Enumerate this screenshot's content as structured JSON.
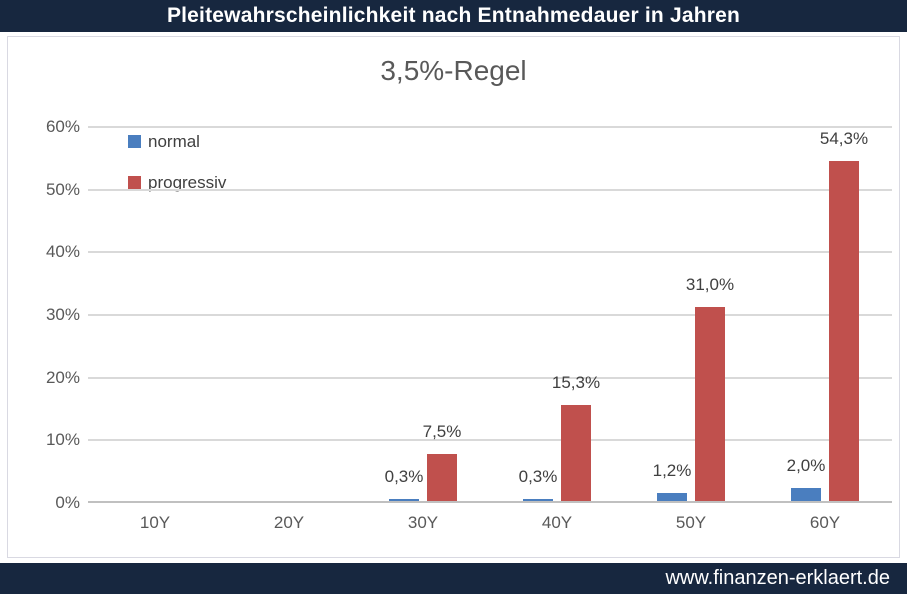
{
  "header": {
    "title": "Pleitewahrscheinlichkeit nach Entnahmedauer in Jahren"
  },
  "footer": {
    "url": "www.finanzen-erklaert.de"
  },
  "colors": {
    "banner_bg": "#17273F",
    "banner_text": "#FFFFFF",
    "normal_bar": "#4A7EBF",
    "progressiv_bar": "#C0504D",
    "axis_text": "#595959",
    "gridline": "#D9D9D9"
  },
  "chart_data": {
    "type": "bar",
    "title": "Pleitewahrscheinlichkeit nach Entnahmedauer in Jahren",
    "subtitle": "3,5%-Regel",
    "categories": [
      "10Y",
      "20Y",
      "30Y",
      "40Y",
      "50Y",
      "60Y"
    ],
    "series": [
      {
        "name": "normal",
        "color": "#4A7EBF",
        "values": [
          0,
          0,
          0.3,
          0.3,
          1.2,
          2.0
        ],
        "labels": [
          "",
          "",
          "0,3%",
          "0,3%",
          "1,2%",
          "2,0%"
        ]
      },
      {
        "name": "progressiv",
        "color": "#C0504D",
        "values": [
          0,
          0,
          7.5,
          15.3,
          31.0,
          54.3
        ],
        "labels": [
          "",
          "",
          "7,5%",
          "15,3%",
          "31,0%",
          "54,3%"
        ]
      }
    ],
    "xlabel": "",
    "ylabel": "",
    "ylim": [
      0,
      60
    ],
    "ytick_step": 10,
    "ytick_suffix": "%",
    "grid": true,
    "legend_position": "top-left"
  }
}
